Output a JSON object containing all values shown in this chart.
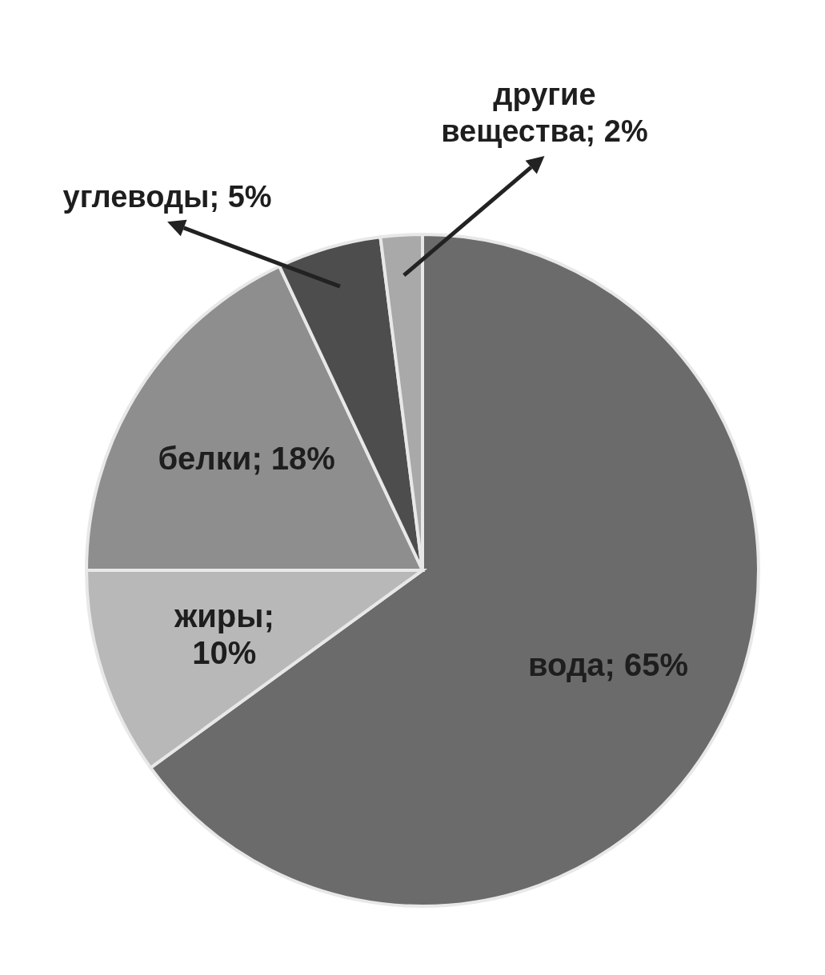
{
  "chart_data": {
    "type": "pie",
    "categories": [
      "вода",
      "жиры",
      "белки",
      "углеводы",
      "другие вещества"
    ],
    "values": [
      65,
      10,
      18,
      5,
      2
    ],
    "colors": [
      "#6b6b6b",
      "#b8b8b8",
      "#8e8e8e",
      "#4d4d4d",
      "#a9a9a9"
    ],
    "value_labels": [
      "; 65%",
      "; 10%",
      "; 18%",
      "; 5%",
      "; 2%"
    ]
  }
}
